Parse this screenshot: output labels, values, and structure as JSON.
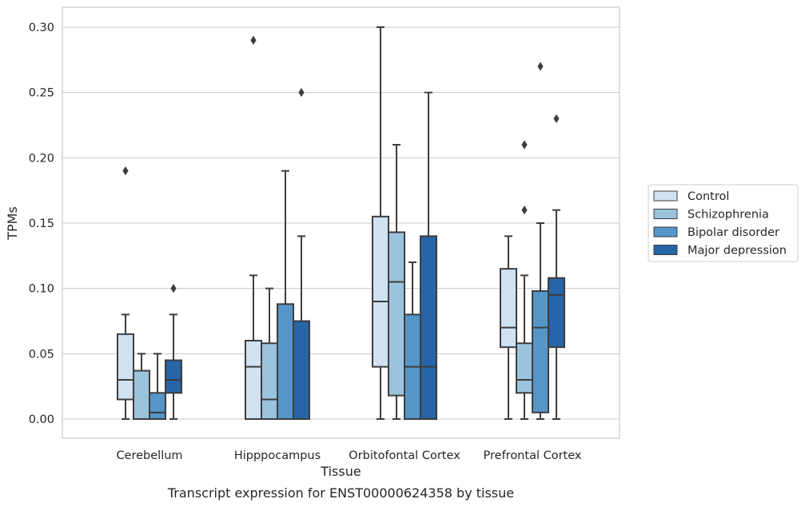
{
  "chart_data": {
    "type": "box",
    "xlabel": "Tissue",
    "ylabel": "TPMs",
    "caption": "Transcript expression for ENST00000624358 by tissue",
    "ylim": [
      -0.014,
      0.315
    ],
    "yticks": [
      0.0,
      0.05,
      0.1,
      0.15,
      0.2,
      0.25,
      0.3
    ],
    "ytick_labels": [
      "0.00",
      "0.05",
      "0.10",
      "0.15",
      "0.20",
      "0.25",
      "0.30"
    ],
    "grid": "horizontal",
    "legend_position": "right",
    "categories": [
      "Cerebellum",
      "Hipppocampus",
      "Orbitofontal Cortex",
      "Prefrontal Cortex"
    ],
    "series": [
      {
        "name": "Control",
        "color": "#d0e1f2",
        "boxes": [
          {
            "whislo": 0.0,
            "q1": 0.015,
            "median": 0.03,
            "q3": 0.065,
            "whishi": 0.08,
            "fliers": [
              0.19
            ]
          },
          {
            "whislo": 0.0,
            "q1": 0.0,
            "median": 0.04,
            "q3": 0.06,
            "whishi": 0.11,
            "fliers": [
              0.29
            ]
          },
          {
            "whislo": 0.0,
            "q1": 0.04,
            "median": 0.09,
            "q3": 0.155,
            "whishi": 0.3,
            "fliers": []
          },
          {
            "whislo": 0.0,
            "q1": 0.055,
            "median": 0.07,
            "q3": 0.115,
            "whishi": 0.14,
            "fliers": []
          }
        ]
      },
      {
        "name": "Schizophrenia",
        "color": "#9ac4de",
        "boxes": [
          {
            "whislo": 0.0,
            "q1": 0.0,
            "median": 0.0,
            "q3": 0.037,
            "whishi": 0.05,
            "fliers": []
          },
          {
            "whislo": 0.0,
            "q1": 0.0,
            "median": 0.015,
            "q3": 0.058,
            "whishi": 0.1,
            "fliers": []
          },
          {
            "whislo": 0.0,
            "q1": 0.018,
            "median": 0.105,
            "q3": 0.143,
            "whishi": 0.21,
            "fliers": []
          },
          {
            "whislo": 0.0,
            "q1": 0.02,
            "median": 0.03,
            "q3": 0.058,
            "whishi": 0.11,
            "fliers": [
              0.16,
              0.21
            ]
          }
        ]
      },
      {
        "name": "Bipolar disorder",
        "color": "#5496c9",
        "boxes": [
          {
            "whislo": 0.0,
            "q1": 0.0,
            "median": 0.005,
            "q3": 0.02,
            "whishi": 0.05,
            "fliers": []
          },
          {
            "whislo": 0.0,
            "q1": 0.0,
            "median": 0.0,
            "q3": 0.088,
            "whishi": 0.19,
            "fliers": []
          },
          {
            "whislo": 0.0,
            "q1": 0.0,
            "median": 0.04,
            "q3": 0.08,
            "whishi": 0.12,
            "fliers": []
          },
          {
            "whislo": 0.0,
            "q1": 0.005,
            "median": 0.07,
            "q3": 0.098,
            "whishi": 0.15,
            "fliers": [
              0.27
            ]
          }
        ]
      },
      {
        "name": "Major depression",
        "color": "#2565a8",
        "boxes": [
          {
            "whislo": 0.0,
            "q1": 0.02,
            "median": 0.03,
            "q3": 0.045,
            "whishi": 0.08,
            "fliers": [
              0.1
            ]
          },
          {
            "whislo": 0.0,
            "q1": 0.0,
            "median": 0.0,
            "q3": 0.075,
            "whishi": 0.14,
            "fliers": [
              0.25
            ]
          },
          {
            "whislo": 0.0,
            "q1": 0.0,
            "median": 0.04,
            "q3": 0.14,
            "whishi": 0.25,
            "fliers": []
          },
          {
            "whislo": 0.0,
            "q1": 0.055,
            "median": 0.095,
            "q3": 0.108,
            "whishi": 0.16,
            "fliers": [
              0.23
            ]
          }
        ]
      }
    ]
  }
}
